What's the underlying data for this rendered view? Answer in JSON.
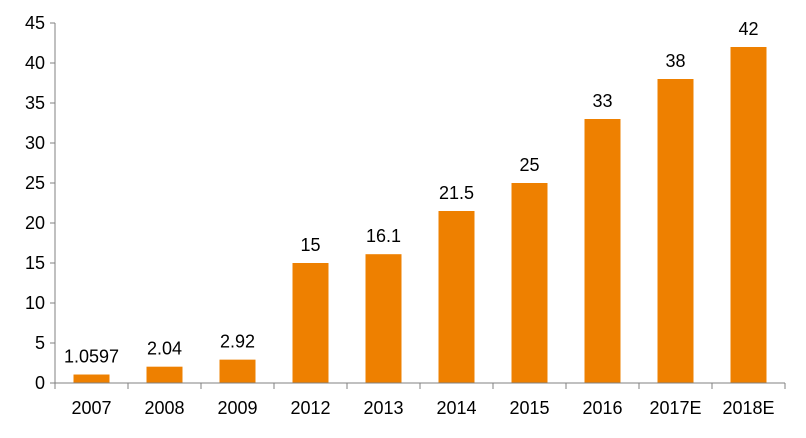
{
  "chart_data": {
    "type": "bar",
    "title": "",
    "xlabel": "",
    "ylabel": "",
    "categories": [
      "2007",
      "2008",
      "2009",
      "2012",
      "2013",
      "2014",
      "2015",
      "2016",
      "2017E",
      "2018E"
    ],
    "values": [
      1.0597,
      2.04,
      2.92,
      15,
      16.1,
      21.5,
      25,
      33,
      38,
      42
    ],
    "value_labels": [
      "1.0597",
      "2.04",
      "2.92",
      "15",
      "16.1",
      "21.5",
      "25",
      "33",
      "38",
      "42"
    ],
    "ylim": [
      0,
      45
    ],
    "yticks": [
      0,
      5,
      10,
      15,
      20,
      25,
      30,
      35,
      40,
      45
    ],
    "grid": false,
    "legend": "none",
    "colors": {
      "bar": "#EE8000",
      "axis": "#808080",
      "text": "#000000"
    }
  }
}
